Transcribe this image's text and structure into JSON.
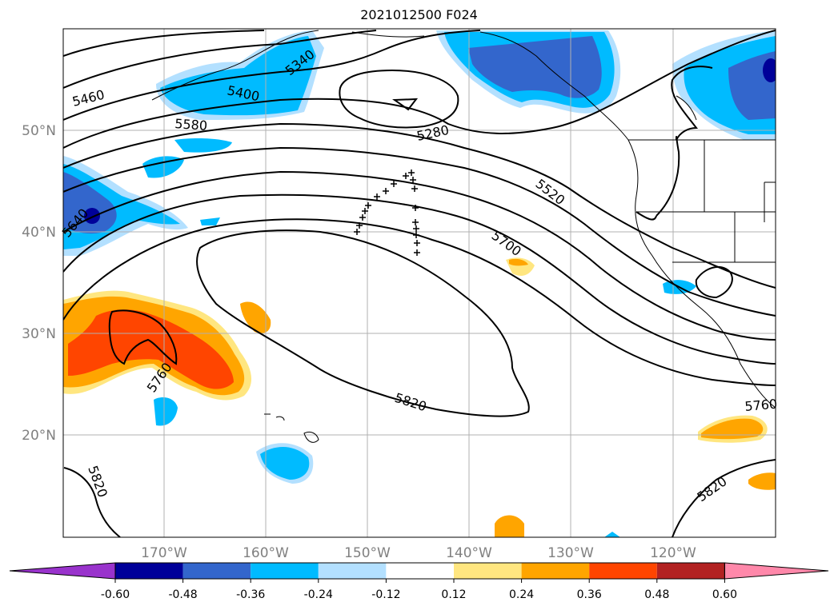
{
  "title": "2021012500 F024",
  "lat_labels": [
    "50°N",
    "40°N",
    "30°N",
    "20°N"
  ],
  "lon_labels": [
    "170°W",
    "160°W",
    "150°W",
    "140°W",
    "130°W",
    "120°W"
  ],
  "contour_labels": [
    "5460",
    "5400",
    "5340",
    "5580",
    "5280",
    "5520",
    "5640",
    "5700",
    "5760",
    "5820",
    "5820",
    "5820",
    "5760"
  ],
  "colorbar": {
    "colors": [
      "#9933cc",
      "#000099",
      "#3366cc",
      "#00bbff",
      "#b3e0ff",
      "#ffffff",
      "#ffe680",
      "#ffa500",
      "#ff4500",
      "#b22222",
      "#ff88aa"
    ],
    "tick_labels": [
      "-0.60",
      "-0.48",
      "-0.36",
      "-0.24",
      "-0.12",
      "0.12",
      "0.24",
      "0.36",
      "0.48",
      "0.60"
    ]
  }
}
